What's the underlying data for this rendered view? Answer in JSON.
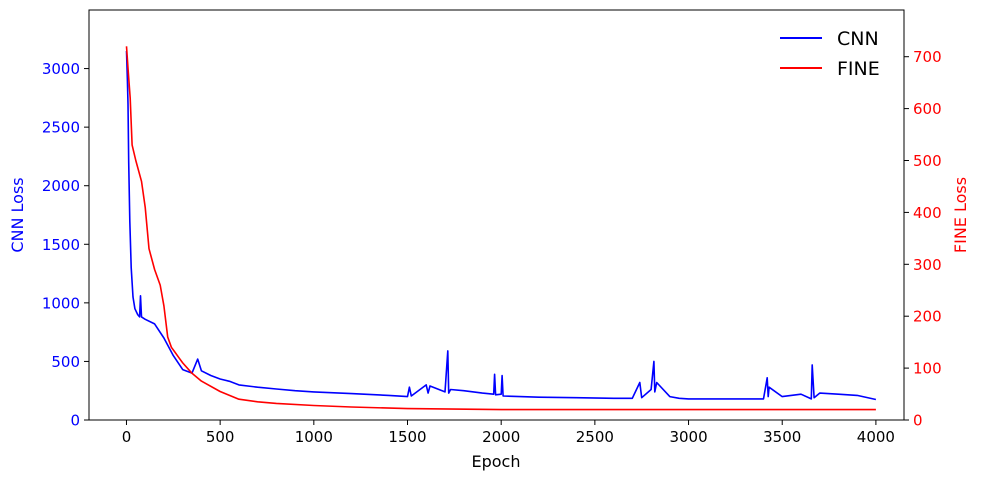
{
  "chart_data": {
    "type": "line",
    "title": "",
    "xlabel": "Epoch",
    "ylabel_left": "CNN Loss",
    "ylabel_right": "FINE Loss",
    "xlim": [
      -200,
      4150
    ],
    "ylim_left": [
      0,
      3500
    ],
    "ylim_right": [
      0,
      790
    ],
    "x_ticks": [
      0,
      500,
      1000,
      1500,
      2000,
      2500,
      3000,
      3500,
      4000
    ],
    "x_tick_labels": [
      "0",
      "500",
      "1000",
      "1500",
      "2000",
      "2500",
      "3000",
      "3500",
      "4000"
    ],
    "y_left_ticks": [
      0,
      500,
      1000,
      1500,
      2000,
      2500,
      3000
    ],
    "y_left_tick_labels": [
      "0",
      "500",
      "1000",
      "1500",
      "2000",
      "2500",
      "3000"
    ],
    "y_right_ticks": [
      0,
      100,
      200,
      300,
      400,
      500,
      600,
      700
    ],
    "y_right_tick_labels": [
      "0",
      "100",
      "200",
      "300",
      "400",
      "500",
      "600",
      "700"
    ],
    "grid": false,
    "legend_position": "top-right",
    "colors": {
      "cnn": "#0000ff",
      "fine": "#ff0000",
      "axes": "#000000"
    },
    "series": [
      {
        "name": "CNN",
        "axis": "left",
        "color": "#0000ff",
        "x": [
          0,
          5,
          8,
          12,
          18,
          25,
          35,
          45,
          60,
          70,
          75,
          80,
          100,
          150,
          200,
          250,
          300,
          350,
          380,
          400,
          450,
          500,
          550,
          600,
          700,
          800,
          900,
          1000,
          1200,
          1400,
          1500,
          1510,
          1520,
          1600,
          1610,
          1620,
          1700,
          1715,
          1720,
          1730,
          1800,
          1900,
          1960,
          1965,
          1970,
          2000,
          2005,
          2010,
          2100,
          2200,
          2400,
          2600,
          2700,
          2740,
          2750,
          2800,
          2815,
          2820,
          2830,
          2900,
          2950,
          3000,
          3200,
          3400,
          3420,
          3425,
          3430,
          3500,
          3600,
          3655,
          3660,
          3670,
          3700,
          3800,
          3900,
          4000
        ],
        "y": [
          3150,
          2900,
          2700,
          2200,
          1700,
          1300,
          1050,
          950,
          900,
          880,
          1060,
          880,
          860,
          820,
          700,
          550,
          430,
          400,
          520,
          420,
          380,
          350,
          330,
          300,
          280,
          265,
          250,
          240,
          225,
          210,
          200,
          280,
          205,
          300,
          230,
          290,
          240,
          590,
          230,
          260,
          250,
          230,
          220,
          390,
          215,
          220,
          380,
          205,
          200,
          195,
          190,
          185,
          185,
          320,
          190,
          260,
          500,
          240,
          320,
          200,
          185,
          180,
          180,
          180,
          360,
          200,
          280,
          200,
          220,
          180,
          470,
          190,
          230,
          220,
          210,
          175
        ]
      },
      {
        "name": "FINE",
        "axis": "right",
        "color": "#ff0000",
        "x": [
          0,
          10,
          20,
          30,
          50,
          80,
          100,
          120,
          150,
          180,
          200,
          220,
          240,
          260,
          280,
          300,
          350,
          400,
          500,
          600,
          700,
          800,
          1000,
          1200,
          1500,
          2000,
          2500,
          3000,
          3500,
          4000
        ],
        "y": [
          720,
          670,
          620,
          530,
          500,
          460,
          410,
          330,
          290,
          260,
          220,
          160,
          140,
          130,
          120,
          110,
          90,
          75,
          55,
          40,
          35,
          32,
          28,
          25,
          22,
          20,
          20,
          20,
          20,
          20
        ]
      }
    ],
    "legend": [
      "CNN",
      "FINE"
    ]
  }
}
